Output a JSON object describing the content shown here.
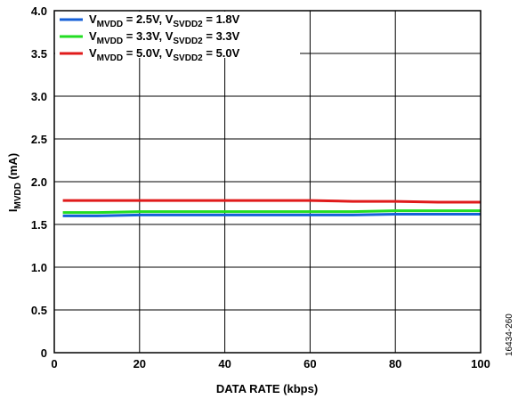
{
  "figure_id": "16434-260",
  "chart_data": {
    "type": "line",
    "xlabel": "DATA RATE (kbps)",
    "ylabel": {
      "main": "I",
      "sub": "MVDD",
      "rest": " (mA)"
    },
    "xlim": [
      0,
      100
    ],
    "ylim": [
      0,
      4.0
    ],
    "x_ticks": [
      "0",
      "20",
      "40",
      "60",
      "80",
      "100"
    ],
    "y_ticks": [
      "0",
      "0.5",
      "1.0",
      "1.5",
      "2.0",
      "2.5",
      "3.0",
      "3.5",
      "4.0"
    ],
    "grid": true,
    "legend_position": "top-left",
    "series": [
      {
        "name": "VMVDD = 2.5V, VSVDD2 = 1.8V",
        "legend": [
          {
            "t": "V"
          },
          {
            "t": "MVDD",
            "sub": true
          },
          {
            "t": " = 2.5V, V"
          },
          {
            "t": "SVDD2",
            "sub": true
          },
          {
            "t": " = 1.8V"
          }
        ],
        "color": "#1560d8",
        "x": [
          2,
          10,
          20,
          30,
          40,
          50,
          60,
          70,
          80,
          90,
          100
        ],
        "y": [
          1.6,
          1.6,
          1.61,
          1.61,
          1.61,
          1.61,
          1.61,
          1.61,
          1.62,
          1.62,
          1.62
        ]
      },
      {
        "name": "VMVDD = 3.3V, VSVDD2 = 3.3V",
        "legend": [
          {
            "t": "V"
          },
          {
            "t": "MVDD",
            "sub": true
          },
          {
            "t": " = 3.3V, V"
          },
          {
            "t": "SVDD2",
            "sub": true
          },
          {
            "t": " = 3.3V"
          }
        ],
        "color": "#22dd22",
        "x": [
          2,
          10,
          20,
          30,
          40,
          50,
          60,
          70,
          80,
          90,
          100
        ],
        "y": [
          1.64,
          1.64,
          1.65,
          1.65,
          1.65,
          1.65,
          1.65,
          1.65,
          1.66,
          1.66,
          1.66
        ]
      },
      {
        "name": "VMVDD = 5.0V, VSVDD2 = 5.0V",
        "legend": [
          {
            "t": "V"
          },
          {
            "t": "MVDD",
            "sub": true
          },
          {
            "t": " = 5.0V, V"
          },
          {
            "t": "SVDD2",
            "sub": true
          },
          {
            "t": " = 5.0V"
          }
        ],
        "color": "#e01b1b",
        "x": [
          2,
          10,
          20,
          30,
          40,
          50,
          60,
          70,
          80,
          90,
          100
        ],
        "y": [
          1.78,
          1.78,
          1.78,
          1.78,
          1.78,
          1.78,
          1.78,
          1.77,
          1.77,
          1.76,
          1.76
        ]
      }
    ]
  }
}
